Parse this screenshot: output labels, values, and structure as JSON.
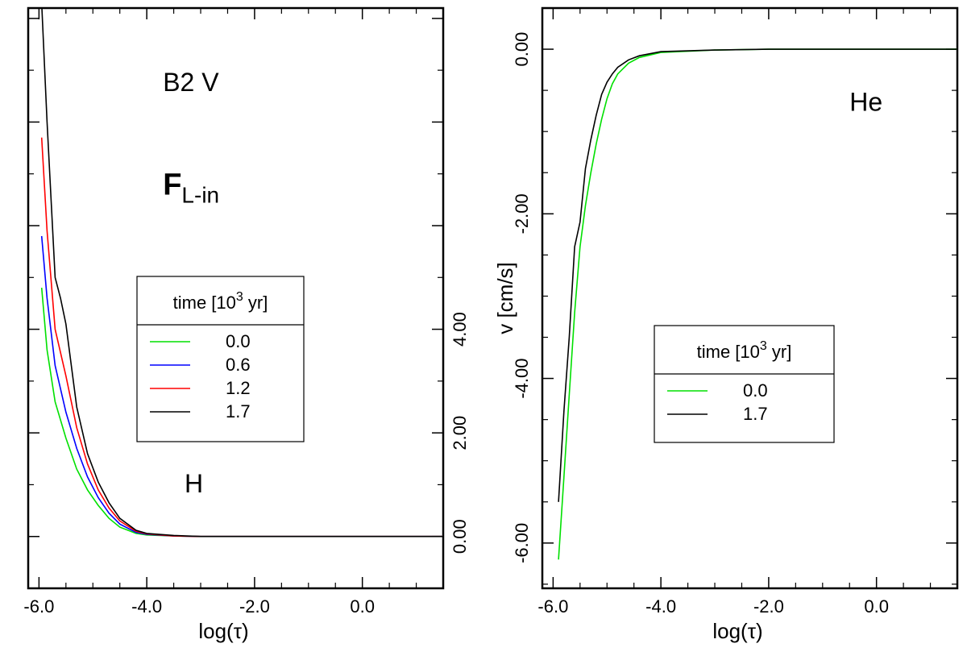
{
  "chart_data": [
    {
      "type": "line",
      "xlabel": "log(τ)",
      "ylabel": "",
      "xlim": [
        -6.2,
        1.5
      ],
      "ylim": [
        -1.0,
        10.2
      ],
      "xticks": [
        -6.0,
        -4.0,
        -2.0,
        0.0
      ],
      "xtick_labels": [
        "-6.0",
        "-4.0",
        "-2.0",
        "0.0"
      ],
      "yticks": [
        0.0,
        2.0,
        4.0
      ],
      "ytick_labels": [
        "0.00",
        "2.00",
        "4.00"
      ],
      "y_axis_labels_side": "right",
      "annotations": [
        {
          "text": "B2 V",
          "x": -3.7,
          "y": 8.6
        },
        {
          "text": "F",
          "sub": "L-in",
          "x": -3.7,
          "y": 6.6
        },
        {
          "text": "H",
          "x": -3.3,
          "y": 0.85
        }
      ],
      "legend": {
        "title": "time [10",
        "title_sup": "3",
        "title_end": " yr]",
        "position": "center-right",
        "entries": [
          {
            "label": "0.0",
            "color": "#00e000"
          },
          {
            "label": "0.6",
            "color": "#0000ff"
          },
          {
            "label": "1.2",
            "color": "#ff0000"
          },
          {
            "label": "1.7",
            "color": "#000000"
          }
        ]
      },
      "series": [
        {
          "name": "0.0",
          "color": "#00e000",
          "x": [
            -5.95,
            -5.85,
            -5.7,
            -5.5,
            -5.3,
            -5.1,
            -4.9,
            -4.7,
            -4.5,
            -4.2,
            -4.0,
            -3.5,
            -3.0,
            -2.0,
            0.0,
            1.5
          ],
          "y": [
            4.8,
            3.6,
            2.6,
            1.9,
            1.3,
            0.9,
            0.6,
            0.35,
            0.18,
            0.06,
            0.03,
            0.01,
            0.0,
            0.0,
            0.0,
            0.0
          ]
        },
        {
          "name": "0.6",
          "color": "#0000ff",
          "x": [
            -5.95,
            -5.85,
            -5.7,
            -5.5,
            -5.3,
            -5.1,
            -4.9,
            -4.7,
            -4.5,
            -4.2,
            -4.0,
            -3.5,
            -3.0,
            -2.0,
            0.0,
            1.5
          ],
          "y": [
            5.8,
            4.6,
            3.3,
            2.4,
            1.7,
            1.15,
            0.75,
            0.45,
            0.24,
            0.08,
            0.04,
            0.01,
            0.0,
            0.0,
            0.0,
            0.0
          ]
        },
        {
          "name": "1.2",
          "color": "#ff0000",
          "x": [
            -5.95,
            -5.85,
            -5.7,
            -5.5,
            -5.3,
            -5.1,
            -4.9,
            -4.7,
            -4.5,
            -4.2,
            -4.0,
            -3.5,
            -3.0,
            -2.0,
            0.0,
            1.5
          ],
          "y": [
            7.7,
            5.9,
            4.0,
            3.1,
            2.1,
            1.4,
            0.9,
            0.55,
            0.3,
            0.1,
            0.05,
            0.01,
            0.0,
            0.0,
            0.0,
            0.0
          ]
        },
        {
          "name": "1.7",
          "color": "#000000",
          "x": [
            -5.95,
            -5.85,
            -5.7,
            -5.6,
            -5.5,
            -5.3,
            -5.1,
            -4.9,
            -4.7,
            -4.5,
            -4.2,
            -4.0,
            -3.5,
            -3.0,
            -2.0,
            0.0,
            1.5
          ],
          "y": [
            10.3,
            8.0,
            5.0,
            4.6,
            4.1,
            2.5,
            1.6,
            1.05,
            0.65,
            0.35,
            0.12,
            0.06,
            0.02,
            0.0,
            0.0,
            0.0,
            0.0
          ]
        }
      ]
    },
    {
      "type": "line",
      "xlabel": "log(τ)",
      "ylabel": "v [cm/s]",
      "xlim": [
        -6.2,
        1.5
      ],
      "ylim": [
        -6.55,
        0.5
      ],
      "xticks": [
        -6.0,
        -4.0,
        -2.0,
        0.0
      ],
      "xtick_labels": [
        "-6.0",
        "-4.0",
        "-2.0",
        "0.0"
      ],
      "yticks": [
        0.0,
        -2.0,
        -4.0,
        -6.0
      ],
      "ytick_labels": [
        "0.00",
        "-2.00",
        "-4.00",
        "-6.00"
      ],
      "y_axis_labels_side": "left",
      "annotations": [
        {
          "text": "He",
          "x": -0.5,
          "y": -0.75
        }
      ],
      "legend": {
        "title": "time [10",
        "title_sup": "3",
        "title_end": " yr]",
        "position": "center-right",
        "entries": [
          {
            "label": "0.0",
            "color": "#00e000"
          },
          {
            "label": "1.7",
            "color": "#000000"
          }
        ]
      },
      "series": [
        {
          "name": "0.0",
          "color": "#00e000",
          "x": [
            -5.9,
            -5.8,
            -5.7,
            -5.6,
            -5.5,
            -5.4,
            -5.3,
            -5.2,
            -5.1,
            -5.0,
            -4.9,
            -4.8,
            -4.6,
            -4.4,
            -4.0,
            -3.0,
            -2.0,
            0.0,
            1.5
          ],
          "y": [
            -6.2,
            -5.2,
            -4.2,
            -3.2,
            -2.4,
            -1.9,
            -1.5,
            -1.15,
            -0.85,
            -0.6,
            -0.42,
            -0.3,
            -0.17,
            -0.1,
            -0.04,
            -0.01,
            0.0,
            0.0,
            0.0
          ]
        },
        {
          "name": "1.7",
          "color": "#000000",
          "x": [
            -5.9,
            -5.8,
            -5.7,
            -5.6,
            -5.5,
            -5.4,
            -5.3,
            -5.2,
            -5.1,
            -5.0,
            -4.9,
            -4.8,
            -4.6,
            -4.4,
            -4.0,
            -3.0,
            -2.0,
            0.0,
            1.5
          ],
          "y": [
            -5.5,
            -4.4,
            -3.5,
            -2.4,
            -2.1,
            -1.45,
            -1.1,
            -0.8,
            -0.55,
            -0.4,
            -0.3,
            -0.22,
            -0.13,
            -0.08,
            -0.03,
            -0.01,
            0.0,
            0.0,
            0.0
          ]
        }
      ]
    }
  ]
}
